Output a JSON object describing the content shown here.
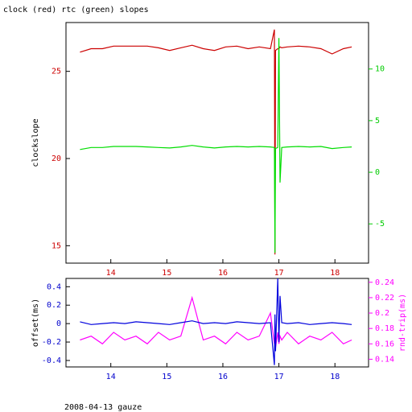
{
  "chart_data": [
    {
      "type": "line",
      "title": "clock (red) rtc (green) slopes",
      "ylabel": "clockslope",
      "x": [
        13.45,
        13.65,
        13.85,
        14.05,
        14.25,
        14.45,
        14.65,
        14.85,
        15.05,
        15.25,
        15.45,
        15.65,
        15.85,
        16.05,
        16.25,
        16.45,
        16.65,
        16.85,
        16.92,
        16.93,
        16.94,
        16.98,
        17.0,
        17.02,
        17.05,
        17.15,
        17.35,
        17.55,
        17.75,
        17.95,
        18.15,
        18.3
      ],
      "series": [
        {
          "name": "clock",
          "color": "#cc0000",
          "axis": "y",
          "values": [
            26.1,
            26.3,
            26.3,
            26.45,
            26.45,
            26.45,
            26.45,
            26.35,
            26.2,
            26.35,
            26.5,
            26.3,
            26.2,
            26.4,
            26.45,
            26.3,
            26.4,
            26.3,
            27.4,
            14.5,
            26.2,
            26.3,
            26.3,
            26.4,
            26.35,
            26.4,
            26.45,
            26.4,
            26.3,
            26.0,
            26.3,
            26.4
          ]
        },
        {
          "name": "rtc",
          "color": "#00dd00",
          "axis": "y2",
          "values": [
            2.2,
            2.4,
            2.4,
            2.5,
            2.5,
            2.5,
            2.45,
            2.4,
            2.35,
            2.45,
            2.6,
            2.45,
            2.35,
            2.45,
            2.5,
            2.45,
            2.5,
            2.45,
            2.4,
            -7.8,
            2.3,
            2.4,
            13,
            -1,
            2.4,
            2.45,
            2.5,
            2.45,
            2.5,
            2.3,
            2.4,
            2.45
          ]
        }
      ],
      "xlim": [
        13.2,
        18.6
      ],
      "xticks": [
        14,
        15,
        16,
        17,
        18
      ],
      "xtick_color": "#cc0000",
      "ylim": [
        14,
        27.8
      ],
      "yticks": [
        15,
        20,
        25
      ],
      "ytick_color": "#cc0000",
      "y2lim": [
        -8.8,
        14.5
      ],
      "y2ticks": [
        -5,
        0,
        5,
        10
      ],
      "y2tick_color": "#00cc00"
    },
    {
      "type": "line",
      "ylabel": "offset(ms)",
      "y2label": "rnd-trip(ms)",
      "x": [
        13.45,
        13.65,
        13.85,
        14.05,
        14.25,
        14.45,
        14.65,
        14.85,
        15.05,
        15.25,
        15.45,
        15.65,
        15.85,
        16.05,
        16.25,
        16.45,
        16.65,
        16.85,
        16.92,
        16.93,
        16.94,
        16.98,
        17.0,
        17.02,
        17.05,
        17.15,
        17.35,
        17.55,
        17.75,
        17.95,
        18.15,
        18.3
      ],
      "series": [
        {
          "name": "rnd-trip",
          "color": "#ff00ff",
          "axis": "y2",
          "values": [
            0.165,
            0.17,
            0.16,
            0.175,
            0.165,
            0.17,
            0.16,
            0.175,
            0.165,
            0.17,
            0.22,
            0.165,
            0.17,
            0.16,
            0.175,
            0.165,
            0.17,
            0.2,
            0.16,
            0.17,
            0.155,
            0.175,
            0.16,
            0.17,
            0.165,
            0.175,
            0.16,
            0.17,
            0.165,
            0.175,
            0.16,
            0.165
          ]
        },
        {
          "name": "offset",
          "color": "#0000dd",
          "axis": "y",
          "values": [
            0.02,
            -0.01,
            0,
            0.01,
            0,
            0.02,
            0.01,
            0,
            -0.01,
            0.01,
            0.03,
            0,
            0.01,
            0,
            0.02,
            0.01,
            0,
            0.01,
            -0.45,
            0.1,
            -0.3,
            0.49,
            -0.2,
            0.3,
            0.01,
            0,
            0.01,
            -0.01,
            0,
            0.01,
            0,
            -0.01
          ]
        }
      ],
      "xlim": [
        13.2,
        18.6
      ],
      "xticks": [
        14,
        15,
        16,
        17,
        18
      ],
      "xtick_color": "#0000cc",
      "ylim": [
        -0.47,
        0.49
      ],
      "yticks": [
        -0.4,
        -0.2,
        0,
        0.2,
        0.4
      ],
      "ytick_color": "#0000cc",
      "y2lim": [
        0.13,
        0.245
      ],
      "y2ticks": [
        0.14,
        0.16,
        0.18,
        0.2,
        0.22,
        0.24
      ],
      "y2tick_color": "#ff00ff"
    }
  ],
  "footer": "2008-04-13 gauze"
}
